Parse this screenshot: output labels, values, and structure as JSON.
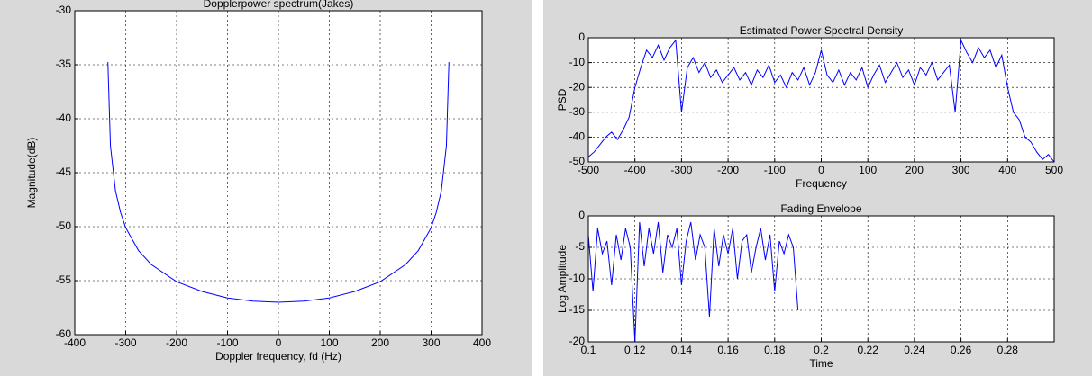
{
  "chart_data": [
    {
      "type": "line",
      "title": "Dopplerpower spectrum(Jakes)",
      "xlabel": "Doppler frequency, fd (Hz)",
      "ylabel": "Magnitude(dB)",
      "x": [
        -335,
        -330,
        -320,
        -310,
        -300,
        -275,
        -250,
        -200,
        -150,
        -100,
        -50,
        0,
        50,
        100,
        150,
        200,
        250,
        275,
        300,
        310,
        320,
        330,
        335
      ],
      "values": [
        -34.75,
        -42.5,
        -46.7,
        -48.7,
        -50.1,
        -52.2,
        -53.5,
        -55.1,
        -56.0,
        -56.6,
        -56.9,
        -57,
        -56.9,
        -56.6,
        -56.0,
        -55.1,
        -53.5,
        -52.2,
        -50.1,
        -48.7,
        -46.7,
        -42.5,
        -34.75
      ],
      "color": "#0000ff",
      "xlim": [
        -400,
        400
      ],
      "xticks": [
        -400,
        -300,
        -200,
        -100,
        0,
        100,
        200,
        300,
        400
      ],
      "ylim": [
        -60,
        -30
      ],
      "yticks": [
        -60,
        -55,
        -50,
        -45,
        -40,
        -35,
        -30
      ],
      "grid": true
    },
    {
      "type": "line",
      "title": "Estimated Power Spectral Density",
      "xlabel": "Frequency",
      "ylabel": "PSD",
      "x": [
        -500,
        -487.5,
        -475,
        -462.5,
        -450,
        -437.5,
        -425,
        -412.5,
        -400,
        -387.5,
        -375,
        -362.5,
        -350,
        -337.5,
        -325,
        -312.5,
        -300,
        -287.5,
        -275,
        -262.5,
        -250,
        -237.5,
        -225,
        -212.5,
        -200,
        -187.5,
        -175,
        -162.5,
        -150,
        -137.5,
        -125,
        -112.5,
        -100,
        -87.5,
        -75,
        -62.5,
        -50,
        -37.5,
        -25,
        -12.5,
        0,
        12.5,
        25,
        37.5,
        50,
        62.5,
        75,
        87.5,
        100,
        112.5,
        125,
        137.5,
        150,
        162.5,
        175,
        187.5,
        200,
        212.5,
        225,
        237.5,
        250,
        262.5,
        275,
        287.5,
        300,
        312.5,
        325,
        337.5,
        350,
        362.5,
        375,
        387.5,
        400,
        412.5,
        425,
        437.5,
        450,
        462.5,
        475,
        487.5,
        500
      ],
      "values": [
        -48,
        -46,
        -43,
        -40,
        -38,
        -41,
        -37,
        -32,
        -20,
        -12,
        -5,
        -8,
        -3,
        -9,
        -4,
        -1,
        -30,
        -12,
        -8,
        -14,
        -10,
        -16,
        -13,
        -18,
        -15,
        -12,
        -17,
        -14,
        -19,
        -13,
        -16,
        -11,
        -18,
        -15,
        -20,
        -14,
        -17,
        -12,
        -19,
        -14,
        -5,
        -15,
        -18,
        -13,
        -19,
        -14,
        -17,
        -12,
        -20,
        -15,
        -11,
        -18,
        -14,
        -10,
        -16,
        -13,
        -19,
        -12,
        -15,
        -10,
        -17,
        -14,
        -11,
        -30,
        -1,
        -6,
        -10,
        -4,
        -8,
        -5,
        -12,
        -7,
        -20,
        -30,
        -33,
        -40,
        -42,
        -46,
        -49,
        -47,
        -50
      ],
      "color": "#0000ff",
      "xlim": [
        -500,
        500
      ],
      "xticks": [
        -500,
        -400,
        -300,
        -200,
        -100,
        0,
        100,
        200,
        300,
        400,
        500
      ],
      "ylim": [
        -50,
        0
      ],
      "yticks": [
        -50,
        -40,
        -30,
        -20,
        -10,
        0
      ],
      "grid": true
    },
    {
      "type": "line",
      "title": "Fading Envelope",
      "xlabel": "Time",
      "ylabel": "Log Amplitude",
      "x": [
        0.1,
        0.102,
        0.104,
        0.106,
        0.108,
        0.11,
        0.112,
        0.114,
        0.116,
        0.118,
        0.12,
        0.122,
        0.124,
        0.126,
        0.128,
        0.13,
        0.132,
        0.134,
        0.136,
        0.138,
        0.14,
        0.142,
        0.144,
        0.146,
        0.148,
        0.15,
        0.152,
        0.154,
        0.156,
        0.158,
        0.16,
        0.162,
        0.164,
        0.166,
        0.168,
        0.17,
        0.172,
        0.174,
        0.176,
        0.178,
        0.18,
        0.182,
        0.184,
        0.186,
        0.188,
        0.19
      ],
      "values": [
        -3,
        -12,
        -2,
        -6,
        -4,
        -11,
        -3,
        -7,
        -2,
        -5,
        -20,
        -1,
        -8,
        -2,
        -6,
        -1,
        -9,
        -3,
        -5,
        -2,
        -11,
        -4,
        -1,
        -7,
        -3,
        -5,
        -16,
        -2,
        -8,
        -3,
        -6,
        -2,
        -10,
        -4,
        -3,
        -9,
        -5,
        -2,
        -7,
        -3,
        -12,
        -4,
        -6,
        -3,
        -5,
        -15
      ],
      "color": "#0000ff",
      "xlim": [
        0.1,
        0.3
      ],
      "xticks": [
        0.1,
        0.12,
        0.14,
        0.16,
        0.18,
        0.2,
        0.22,
        0.24,
        0.26,
        0.28
      ],
      "ylim": [
        -20,
        0
      ],
      "yticks": [
        -20,
        -15,
        -10,
        -5,
        0
      ],
      "grid": true
    }
  ]
}
